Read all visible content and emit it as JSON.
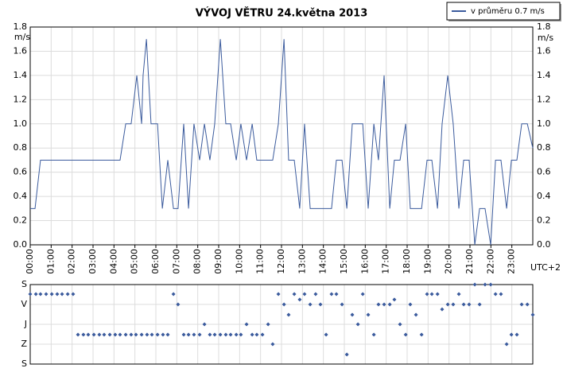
{
  "chart_data": [
    {
      "type": "line",
      "title": "VÝVOJ VĚTRU  24.května 2013",
      "y_label": "m/s",
      "x_label": "UTC+2",
      "grid": true,
      "legend": "top-right",
      "xlim": [
        0,
        24
      ],
      "xticks": [
        {
          "value": 0,
          "label": "00:00"
        },
        {
          "value": 1,
          "label": "01:00"
        },
        {
          "value": 2,
          "label": "02:00"
        },
        {
          "value": 3,
          "label": "03:00"
        },
        {
          "value": 4,
          "label": "04:00"
        },
        {
          "value": 5,
          "label": "05:00"
        },
        {
          "value": 6,
          "label": "06:00"
        },
        {
          "value": 7,
          "label": "07:00"
        },
        {
          "value": 8,
          "label": "08:00"
        },
        {
          "value": 9,
          "label": "09:00"
        },
        {
          "value": 10,
          "label": "10:00"
        },
        {
          "value": 11,
          "label": "11:00"
        },
        {
          "value": 12,
          "label": "12:00"
        },
        {
          "value": 13,
          "label": "13:00"
        },
        {
          "value": 14,
          "label": "14:00"
        },
        {
          "value": 15,
          "label": "15:00"
        },
        {
          "value": 16,
          "label": "16:00"
        },
        {
          "value": 17,
          "label": "17:00"
        },
        {
          "value": 18,
          "label": "18:00"
        },
        {
          "value": 19,
          "label": "19:00"
        },
        {
          "value": 20,
          "label": "20:00"
        },
        {
          "value": 21,
          "label": "21:00"
        },
        {
          "value": 22,
          "label": "22:00"
        },
        {
          "value": 23,
          "label": "23:00"
        }
      ],
      "ylim": [
        0,
        1.8
      ],
      "yticks": [
        {
          "value": 0,
          "label": "0.0"
        },
        {
          "value": 0.2,
          "label": "0.2"
        },
        {
          "value": 0.4,
          "label": "0.4"
        },
        {
          "value": 0.6,
          "label": "0.6"
        },
        {
          "value": 0.8,
          "label": "0.8"
        },
        {
          "value": 1,
          "label": "1.0"
        },
        {
          "value": 1.2,
          "label": "1.2"
        },
        {
          "value": 1.4,
          "label": "1.4"
        },
        {
          "value": 1.6,
          "label": "1.6"
        },
        {
          "value": 1.8,
          "label": "1.8"
        }
      ],
      "series": [
        {
          "name": "v průměru 0.7 m/s",
          "color": "#3b5b9d",
          "x": [
            0,
            0.23,
            0.49,
            4.29,
            4.56,
            4.82,
            5.09,
            5.32,
            5.39,
            5.55,
            5.77,
            6.08,
            6.31,
            6.57,
            6.84,
            7.06,
            7.33,
            7.56,
            7.82,
            8.09,
            8.32,
            8.58,
            8.81,
            9.08,
            9.34,
            9.57,
            9.84,
            10.06,
            10.33,
            10.6,
            10.82,
            11.58,
            11.85,
            12.12,
            12.34,
            12.61,
            12.87,
            13.1,
            13.37,
            14.39,
            14.62,
            14.89,
            15.12,
            15.38,
            15.88,
            16.14,
            16.41,
            16.63,
            16.9,
            17.17,
            17.39,
            17.66,
            17.93,
            18.15,
            18.69,
            18.95,
            19.18,
            19.45,
            19.67,
            19.94,
            20.2,
            20.47,
            20.7,
            20.96,
            21.23,
            21.46,
            21.72,
            21.99,
            22.22,
            22.48,
            22.75,
            22.98,
            23.24,
            23.47,
            23.74,
            24.0
          ],
          "values": [
            0.3,
            0.3,
            0.7,
            0.7,
            1.0,
            1.0,
            1.4,
            1.0,
            1.4,
            1.7,
            1.0,
            1.0,
            0.3,
            0.7,
            0.3,
            0.3,
            1.0,
            0.3,
            1.0,
            0.7,
            1.0,
            0.7,
            1.0,
            1.7,
            1.0,
            1.0,
            0.7,
            1.0,
            0.7,
            1.0,
            0.7,
            0.7,
            1.0,
            1.7,
            0.7,
            0.7,
            0.3,
            1.0,
            0.3,
            0.3,
            0.7,
            0.7,
            0.3,
            1.0,
            1.0,
            0.3,
            1.0,
            0.7,
            1.4,
            0.3,
            0.7,
            0.7,
            1.0,
            0.3,
            0.3,
            0.7,
            0.7,
            0.3,
            1.0,
            1.4,
            1.0,
            0.3,
            0.7,
            0.7,
            0.0,
            0.3,
            0.3,
            0.0,
            0.7,
            0.7,
            0.3,
            0.7,
            0.7,
            1.0,
            1.0,
            0.8
          ]
        }
      ]
    },
    {
      "type": "scatter",
      "grid": true,
      "xlim": [
        0,
        24
      ],
      "ylim": [
        360,
        0
      ],
      "yticks": [
        {
          "value": 0,
          "label": "S"
        },
        {
          "value": 90,
          "label": "V"
        },
        {
          "value": 180,
          "label": "J"
        },
        {
          "value": 270,
          "label": "Z"
        },
        {
          "value": 360,
          "label": "S"
        }
      ],
      "series": [
        {
          "color": "#3b5b9d",
          "x": [
            0,
            0.27,
            0.49,
            0.76,
            1.03,
            1.29,
            1.52,
            1.79,
            2.05,
            2.28,
            2.54,
            2.77,
            3.04,
            3.3,
            3.53,
            3.8,
            4.06,
            4.29,
            4.56,
            4.82,
            5.05,
            5.32,
            5.58,
            5.81,
            6.08,
            6.34,
            6.57,
            6.84,
            7.06,
            7.33,
            7.56,
            7.82,
            8.09,
            8.32,
            8.58,
            8.81,
            9.08,
            9.34,
            9.57,
            9.84,
            10.06,
            10.33,
            10.6,
            10.82,
            11.09,
            11.36,
            11.58,
            11.85,
            12.12,
            12.34,
            12.61,
            12.87,
            13.1,
            13.37,
            13.63,
            13.86,
            14.13,
            14.39,
            14.62,
            14.89,
            15.12,
            15.38,
            15.65,
            15.88,
            16.14,
            16.41,
            16.63,
            16.9,
            17.17,
            17.39,
            17.66,
            17.93,
            18.15,
            18.42,
            18.69,
            18.95,
            19.18,
            19.45,
            19.67,
            19.94,
            20.2,
            20.47,
            20.7,
            20.96,
            21.23,
            21.46,
            21.72,
            21.99,
            22.22,
            22.48,
            22.75,
            22.98,
            23.24,
            23.47,
            23.74,
            24.0
          ],
          "values": [
            43,
            43,
            43,
            43,
            43,
            43,
            43,
            43,
            43,
            227,
            227,
            227,
            227,
            227,
            227,
            227,
            227,
            227,
            227,
            227,
            227,
            227,
            227,
            227,
            227,
            227,
            227,
            43,
            90,
            227,
            227,
            227,
            227,
            180,
            227,
            227,
            227,
            227,
            227,
            227,
            227,
            180,
            227,
            227,
            227,
            180,
            270,
            43,
            90,
            137,
            43,
            68,
            43,
            90,
            43,
            90,
            227,
            43,
            43,
            90,
            317,
            137,
            180,
            43,
            137,
            227,
            90,
            90,
            90,
            68,
            180,
            227,
            90,
            137,
            227,
            43,
            43,
            43,
            112,
            90,
            90,
            43,
            90,
            90,
            0,
            90,
            0,
            0,
            43,
            43,
            270,
            227,
            227,
            90,
            90,
            137
          ]
        }
      ]
    }
  ]
}
